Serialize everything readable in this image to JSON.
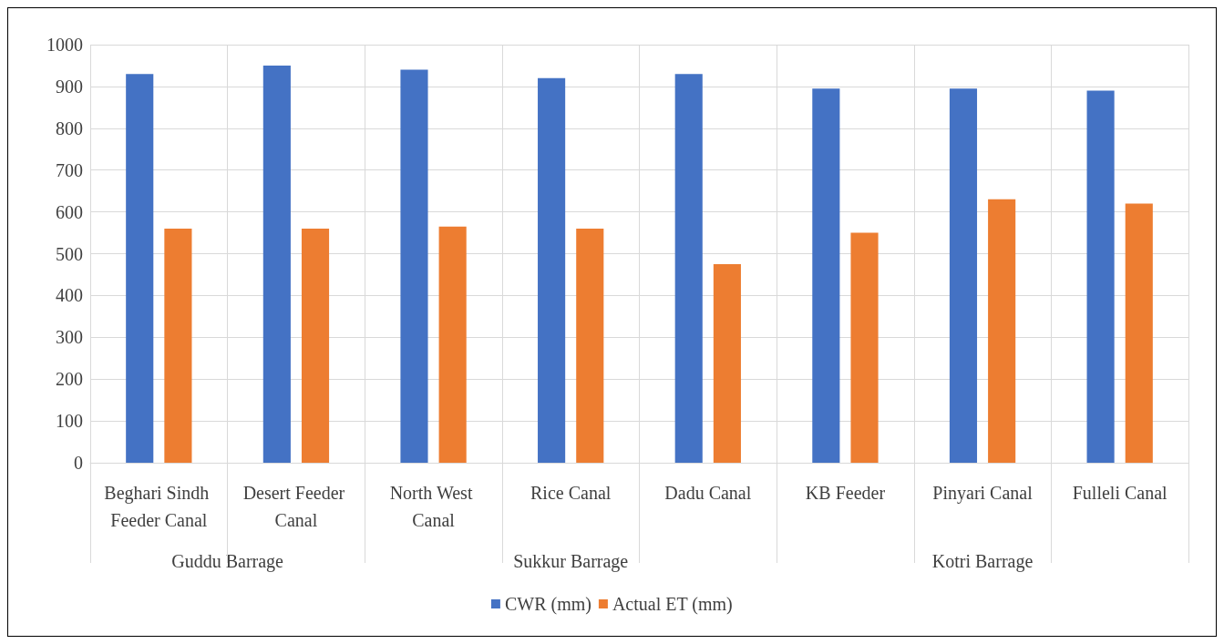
{
  "chart_data": {
    "type": "bar",
    "categories": [
      "Beghari Sindh Feeder Canal",
      "Desert Feeder Canal",
      "North West Canal",
      "Rice Canal",
      "Dadu Canal",
      "KB Feeder",
      "Pinyari Canal",
      "Fulleli Canal"
    ],
    "series": [
      {
        "name": "CWR (mm)",
        "color": "#4472c4",
        "values": [
          930,
          950,
          940,
          920,
          930,
          895,
          895,
          890
        ]
      },
      {
        "name": "Actual ET (mm)",
        "color": "#ed7d31",
        "values": [
          560,
          560,
          565,
          560,
          475,
          550,
          630,
          620
        ]
      }
    ],
    "annotations": [
      "Guddu Barrage",
      "Sukkur Barrage",
      "Kotri Barrage"
    ],
    "ylim": [
      0,
      1000
    ],
    "yticks": [
      0,
      100,
      200,
      300,
      400,
      500,
      600,
      700,
      800,
      900,
      1000
    ],
    "grid": true,
    "legend": "bottom"
  }
}
